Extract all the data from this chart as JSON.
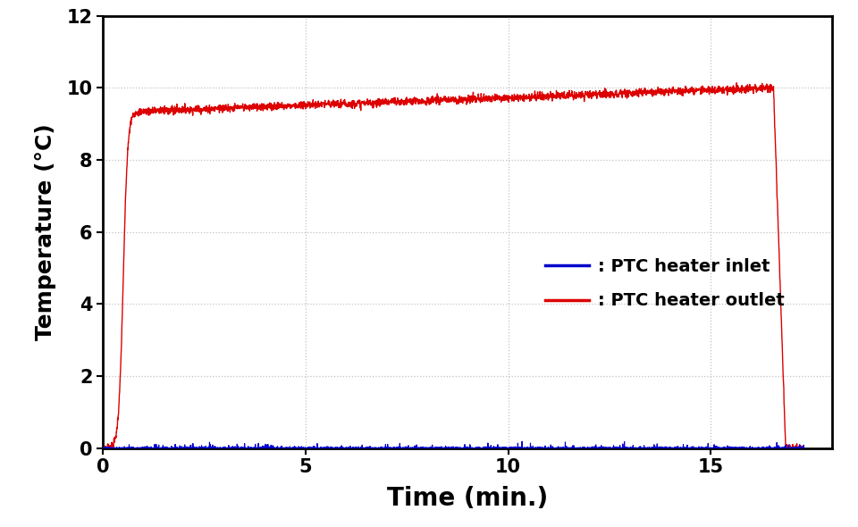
{
  "title": "",
  "xlabel": "Time (min.)",
  "ylabel": "Temperature (°C)",
  "xlim": [
    0,
    18
  ],
  "ylim": [
    0,
    12
  ],
  "xticks": [
    0,
    5,
    10,
    15
  ],
  "yticks": [
    0,
    2,
    4,
    6,
    8,
    10,
    12
  ],
  "inlet_color": "#0000cc",
  "outlet_color": "#dd0000",
  "inlet_label": ": PTC heater inlet",
  "outlet_label": ": PTC heater outlet",
  "background_color": "#ffffff",
  "grid_color": "#bbbbbb",
  "linewidth_inlet": 0.8,
  "linewidth_outlet": 1.0,
  "total_time": 17.3,
  "rise_start": 0.15,
  "rise_mid": 0.5,
  "rise_steepness": 18,
  "plateau_start_val": 9.35,
  "plateau_end_val": 10.0,
  "drop_start": 16.55,
  "drop_end": 16.85,
  "n_points": 3000,
  "xlabel_fontsize": 20,
  "ylabel_fontsize": 18,
  "tick_fontsize": 15,
  "legend_fontsize": 14
}
